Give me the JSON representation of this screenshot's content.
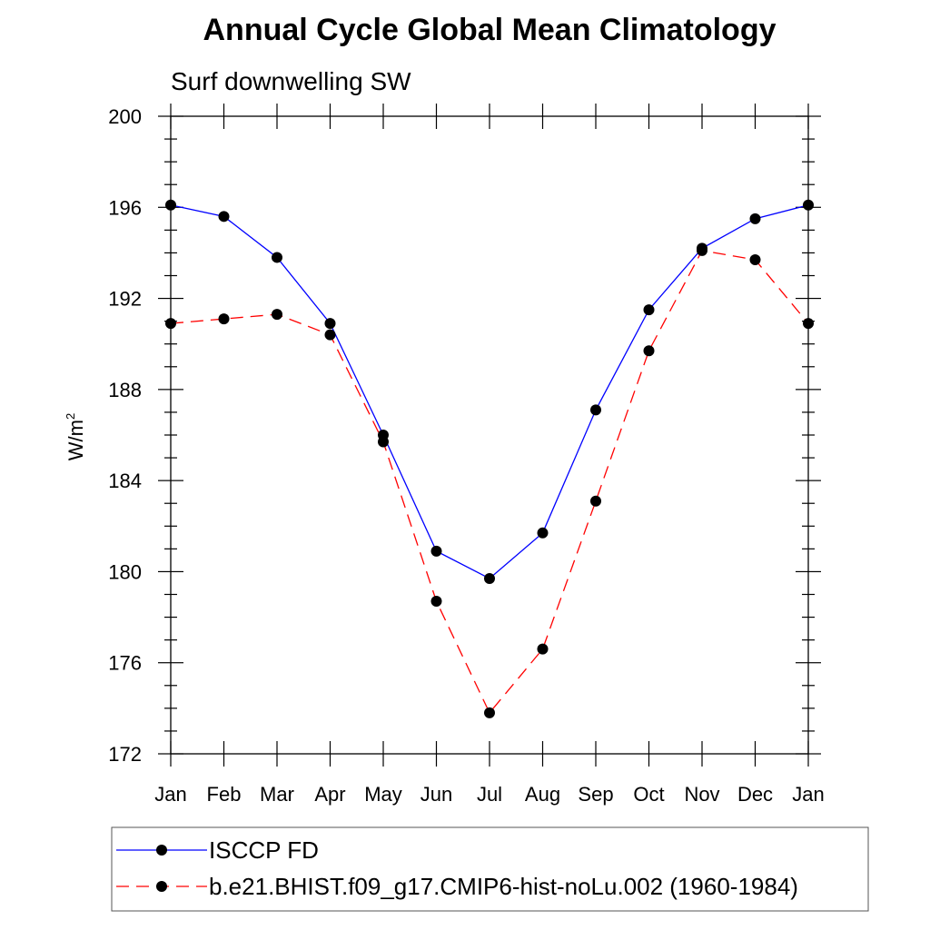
{
  "title": "Annual Cycle Global Mean Climatology",
  "chart_data": {
    "type": "line",
    "subtitle": "Surf downwelling SW",
    "ylabel": "W/m",
    "ylabel_sup": "2",
    "xlabel": "",
    "categories": [
      "Jan",
      "Feb",
      "Mar",
      "Apr",
      "May",
      "Jun",
      "Jul",
      "Aug",
      "Sep",
      "Oct",
      "Nov",
      "Dec",
      "Jan"
    ],
    "ylim": [
      172,
      200
    ],
    "yticks": [
      172,
      176,
      180,
      184,
      188,
      192,
      196,
      200
    ],
    "grid": false,
    "legend_position": "bottom",
    "series": [
      {
        "name": "ISCCP FD",
        "color": "#0000ff",
        "dash": "solid",
        "values": [
          196.1,
          195.6,
          193.8,
          190.9,
          186.0,
          180.9,
          179.7,
          181.7,
          187.1,
          191.5,
          194.2,
          195.5,
          196.1
        ]
      },
      {
        "name": "b.e21.BHIST.f09_g17.CMIP6-hist-noLu.002 (1960-1984)",
        "color": "#ff0000",
        "dash": "dashed",
        "values": [
          190.9,
          191.1,
          191.3,
          190.4,
          185.7,
          178.7,
          173.8,
          176.6,
          183.1,
          189.7,
          194.1,
          193.7,
          190.9
        ]
      }
    ]
  }
}
